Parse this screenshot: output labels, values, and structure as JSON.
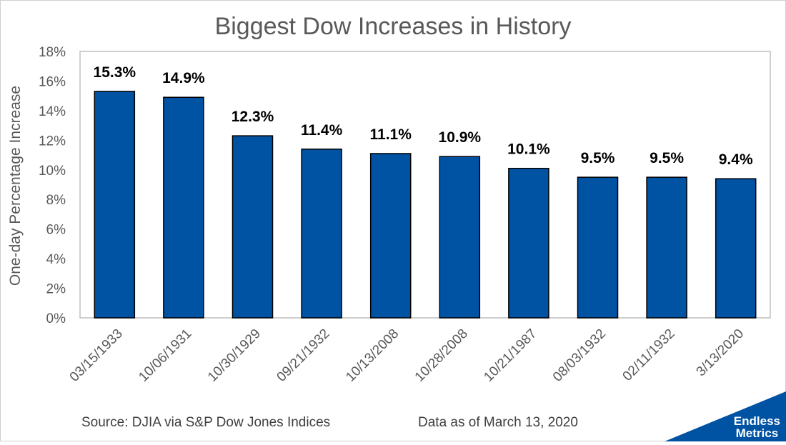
{
  "chart_data": {
    "type": "bar",
    "title": "Biggest Dow Increases in History",
    "ylabel": "One-day Percentage Increase",
    "xlabel": "",
    "ylim": [
      0,
      18
    ],
    "y_ticks": [
      "0%",
      "2%",
      "4%",
      "6%",
      "8%",
      "10%",
      "12%",
      "14%",
      "16%",
      "18%"
    ],
    "categories": [
      "03/15/1933",
      "10/06/1931",
      "10/30/1929",
      "09/21/1932",
      "10/13/2008",
      "10/28/2008",
      "10/21/1987",
      "08/03/1932",
      "02/11/1932",
      "3/13/2020"
    ],
    "values": [
      15.3,
      14.9,
      12.3,
      11.4,
      11.1,
      10.9,
      10.1,
      9.5,
      9.5,
      9.4
    ],
    "data_labels": [
      "15.3%",
      "14.9%",
      "12.3%",
      "11.4%",
      "11.1%",
      "10.9%",
      "10.1%",
      "9.5%",
      "9.5%",
      "9.4%"
    ],
    "bar_color": "#0052a3",
    "grid": false,
    "legend": "none"
  },
  "footer": {
    "source": "Source: DJIA via S&P Dow Jones Indices",
    "as_of": "Data as of March 13, 2020"
  },
  "logo": {
    "line1": "Endless",
    "line2": "Metrics",
    "color": "#0052a3"
  }
}
